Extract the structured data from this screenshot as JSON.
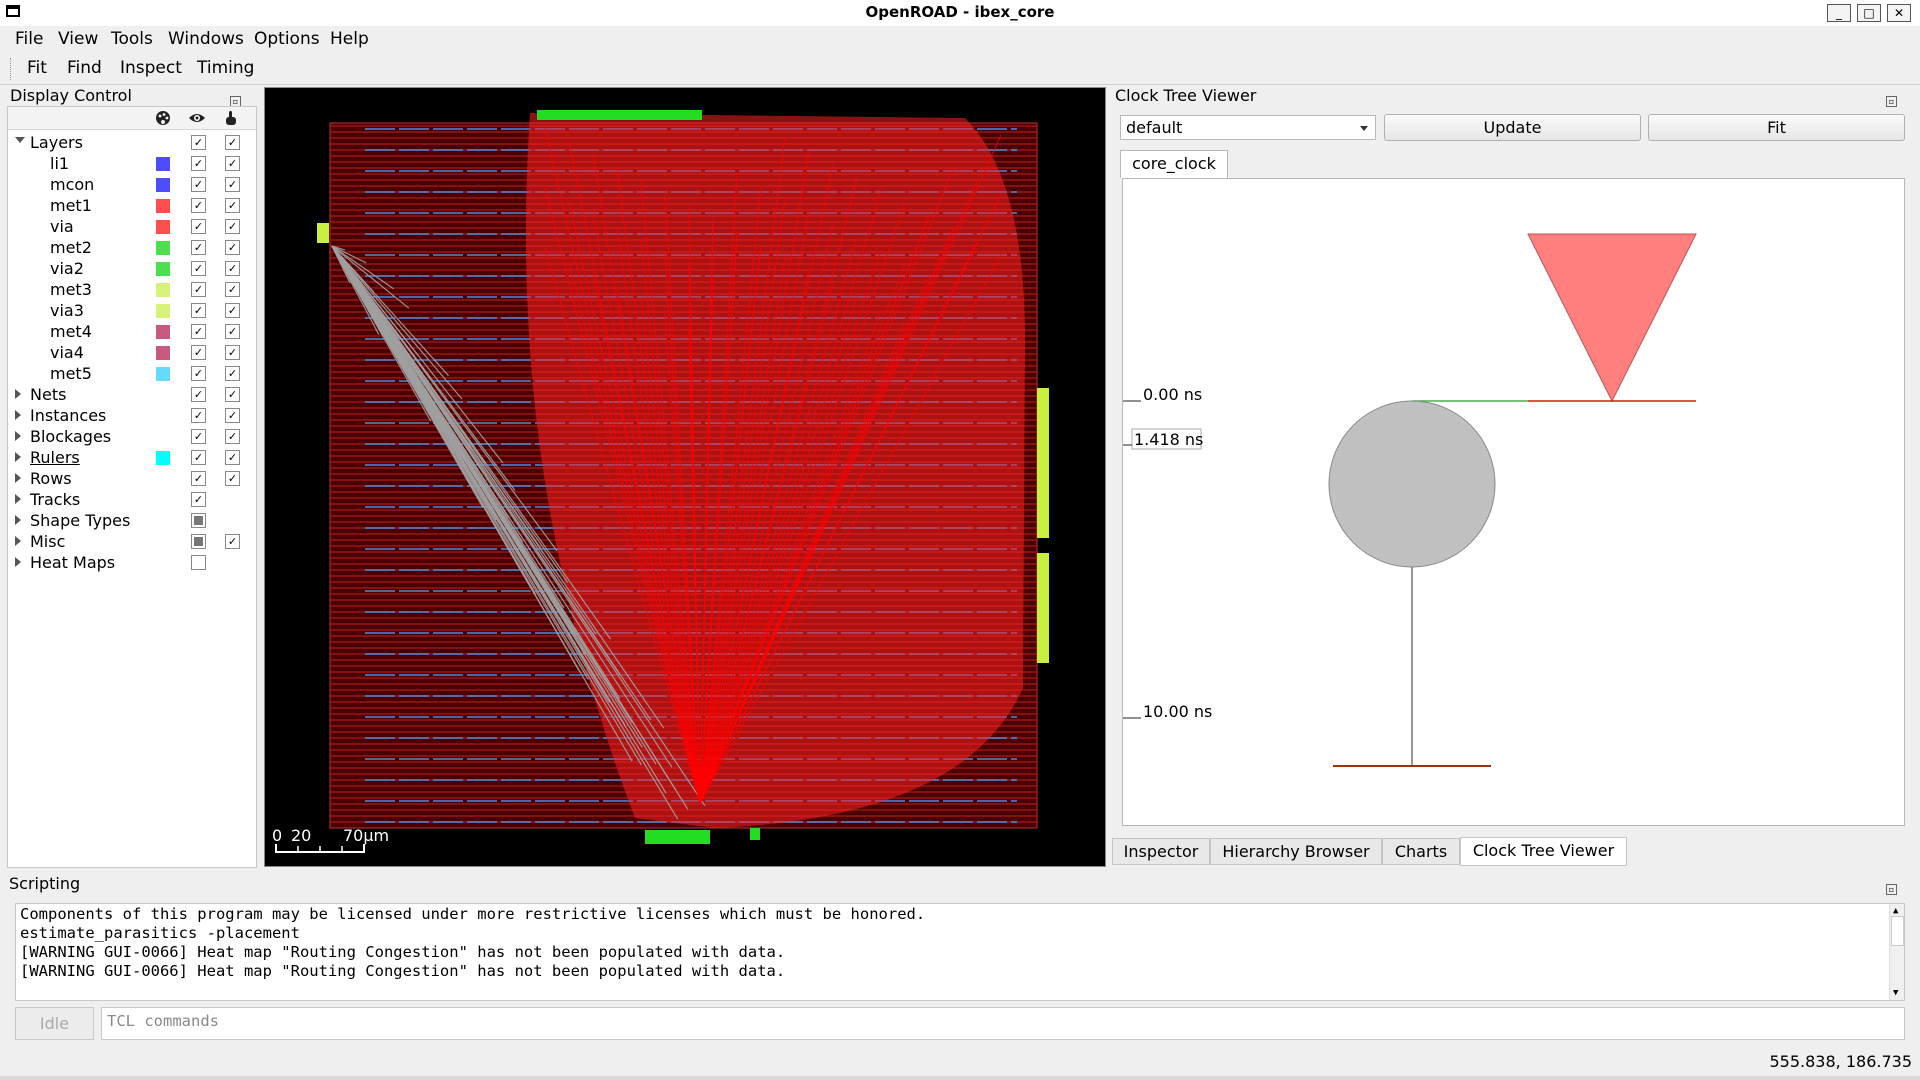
{
  "window": {
    "title": "OpenROAD - ibex_core",
    "controls": [
      "_",
      "□",
      "✕"
    ]
  },
  "menubar": {
    "items": [
      "File",
      "View",
      "Tools",
      "Windows",
      "Options",
      "Help"
    ]
  },
  "toolbar": {
    "items": [
      "Fit",
      "Find",
      "Inspect",
      "Timing"
    ]
  },
  "display_control": {
    "title": "Display Control",
    "layers_group": "Layers",
    "layers": [
      {
        "name": "li1",
        "color": "#4d4dff"
      },
      {
        "name": "mcon",
        "color": "#4d4dff"
      },
      {
        "name": "met1",
        "color": "#ff4d4d"
      },
      {
        "name": "via",
        "color": "#ff4d4d"
      },
      {
        "name": "met2",
        "color": "#4ddf4d"
      },
      {
        "name": "via2",
        "color": "#4ddf4d"
      },
      {
        "name": "met3",
        "color": "#d6f27a"
      },
      {
        "name": "via3",
        "color": "#d6f27a"
      },
      {
        "name": "met4",
        "color": "#c85a82"
      },
      {
        "name": "via4",
        "color": "#c85a82"
      },
      {
        "name": "met5",
        "color": "#66d9ff"
      }
    ],
    "groups": [
      {
        "name": "Nets",
        "visible": "check",
        "selectable": "check"
      },
      {
        "name": "Instances",
        "visible": "check",
        "selectable": "check"
      },
      {
        "name": "Blockages",
        "visible": "check",
        "selectable": "check"
      },
      {
        "name": "Rulers",
        "visible": "check",
        "selectable": "check",
        "color": "#00ffff"
      },
      {
        "name": "Rows",
        "visible": "check",
        "selectable": "check"
      },
      {
        "name": "Tracks",
        "visible": "check",
        "selectable": "none"
      },
      {
        "name": "Shape Types",
        "visible": "partial",
        "selectable": "none"
      },
      {
        "name": "Misc",
        "visible": "partial",
        "selectable": "check"
      },
      {
        "name": "Heat Maps",
        "visible": "empty",
        "selectable": "none"
      }
    ],
    "header_icons": [
      "palette-icon",
      "eye-icon",
      "pointer-icon"
    ]
  },
  "layout_view": {
    "scale_labels": [
      "0",
      "20",
      "70µm"
    ]
  },
  "clock_tree_viewer": {
    "title": "Clock Tree Viewer",
    "corner_select": "default",
    "update_label": "Update",
    "fit_label": "Fit",
    "clock_tab": "core_clock",
    "time_labels": [
      "0.00 ns",
      "1.418 ns",
      "10.00 ns"
    ],
    "colors": {
      "root": "#ff7f7f",
      "buffer": "#c0c0c0",
      "wire_green": "#4caf50",
      "wire_red": "#cc2200"
    }
  },
  "right_tabs": [
    "Inspector",
    "Hierarchy Browser",
    "Charts",
    "Clock Tree Viewer"
  ],
  "scripting": {
    "title": "Scripting",
    "lines": [
      "Components of this program may be licensed under more restrictive licenses which must be honored.",
      "estimate_parasitics -placement",
      "[WARNING GUI-0066] Heat map \"Routing Congestion\" has not been populated with data.",
      "[WARNING GUI-0066] Heat map \"Routing Congestion\" has not been populated with data."
    ],
    "idle_label": "Idle",
    "input_placeholder": "TCL commands"
  },
  "status": {
    "coordinates": "555.838, 186.735"
  }
}
